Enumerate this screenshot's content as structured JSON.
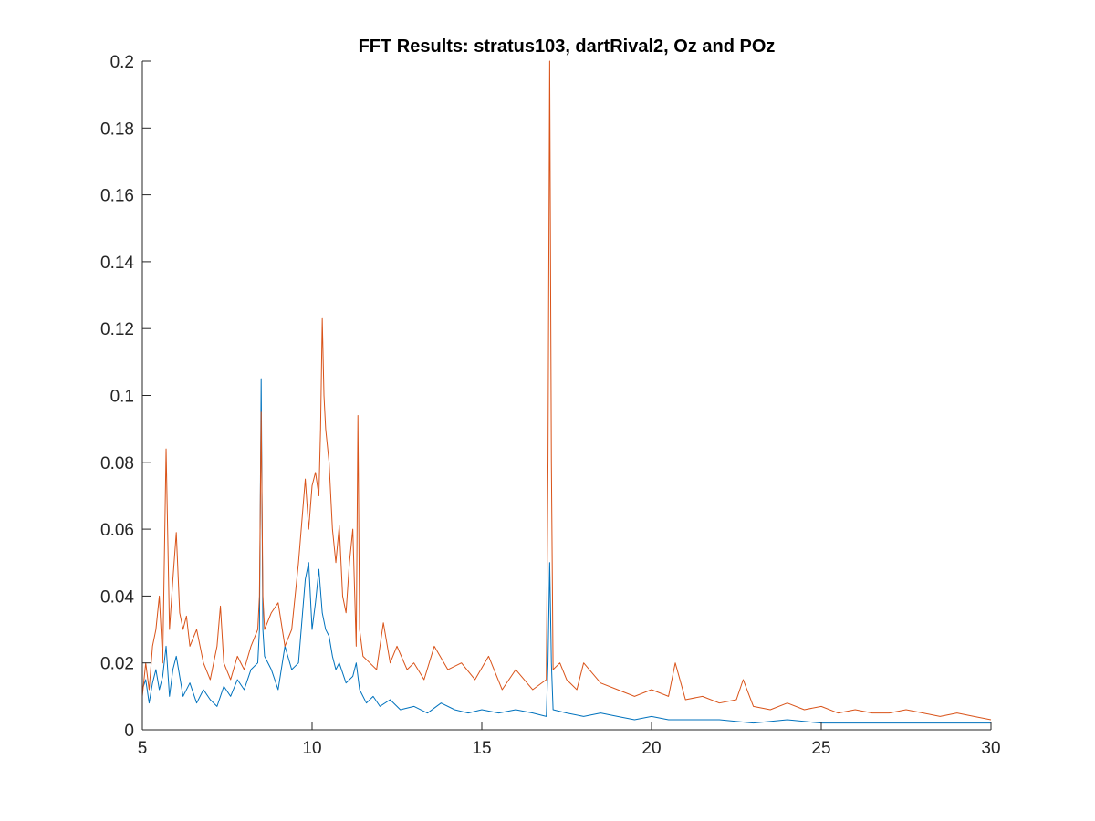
{
  "chart_data": {
    "type": "line",
    "title": "FFT Results: stratus103, dartRival2, Oz and POz",
    "xlabel": "",
    "ylabel": "",
    "xlim": [
      5,
      30
    ],
    "ylim": [
      0,
      0.2
    ],
    "xticks": [
      5,
      10,
      15,
      20,
      25,
      30
    ],
    "xtick_labels": [
      "5",
      "10",
      "15",
      "20",
      "25",
      "30"
    ],
    "yticks": [
      0,
      0.02,
      0.04,
      0.06,
      0.08,
      0.1,
      0.12,
      0.14,
      0.16,
      0.18,
      0.2
    ],
    "ytick_labels": [
      "0",
      "0.02",
      "0.04",
      "0.06",
      "0.08",
      "0.1",
      "0.12",
      "0.14",
      "0.16",
      "0.18",
      "0.2"
    ],
    "grid": false,
    "legend": "none",
    "series": [
      {
        "color": "#0072BD",
        "x": [
          5.0,
          5.1,
          5.2,
          5.3,
          5.4,
          5.5,
          5.6,
          5.7,
          5.8,
          5.9,
          6.0,
          6.2,
          6.4,
          6.6,
          6.8,
          7.0,
          7.2,
          7.4,
          7.6,
          7.8,
          8.0,
          8.2,
          8.4,
          8.45,
          8.5,
          8.55,
          8.6,
          8.8,
          9.0,
          9.2,
          9.4,
          9.6,
          9.8,
          9.9,
          10.0,
          10.1,
          10.2,
          10.3,
          10.4,
          10.5,
          10.6,
          10.7,
          10.8,
          11.0,
          11.2,
          11.3,
          11.4,
          11.6,
          11.8,
          12.0,
          12.3,
          12.6,
          13.0,
          13.4,
          13.8,
          14.2,
          14.6,
          15.0,
          15.5,
          16.0,
          16.5,
          16.9,
          16.95,
          17.0,
          17.05,
          17.1,
          17.5,
          18.0,
          18.5,
          19.0,
          19.5,
          20.0,
          20.5,
          21.0,
          22.0,
          23.0,
          24.0,
          25.0,
          26.0,
          27.0,
          28.0,
          29.0,
          30.0
        ],
        "y": [
          0.012,
          0.015,
          0.008,
          0.014,
          0.018,
          0.012,
          0.016,
          0.025,
          0.01,
          0.018,
          0.022,
          0.01,
          0.014,
          0.008,
          0.012,
          0.009,
          0.007,
          0.013,
          0.01,
          0.015,
          0.012,
          0.018,
          0.02,
          0.03,
          0.105,
          0.03,
          0.022,
          0.018,
          0.012,
          0.025,
          0.018,
          0.02,
          0.045,
          0.05,
          0.03,
          0.038,
          0.048,
          0.035,
          0.03,
          0.028,
          0.022,
          0.018,
          0.02,
          0.014,
          0.016,
          0.02,
          0.012,
          0.008,
          0.01,
          0.007,
          0.009,
          0.006,
          0.007,
          0.005,
          0.008,
          0.006,
          0.005,
          0.006,
          0.005,
          0.006,
          0.005,
          0.004,
          0.02,
          0.05,
          0.02,
          0.006,
          0.005,
          0.004,
          0.005,
          0.004,
          0.003,
          0.004,
          0.003,
          0.003,
          0.003,
          0.002,
          0.003,
          0.002,
          0.002,
          0.002,
          0.002,
          0.002,
          0.002
        ]
      },
      {
        "color": "#D95319",
        "x": [
          5.0,
          5.1,
          5.2,
          5.3,
          5.4,
          5.5,
          5.6,
          5.7,
          5.8,
          5.9,
          6.0,
          6.1,
          6.2,
          6.3,
          6.4,
          6.6,
          6.8,
          7.0,
          7.2,
          7.3,
          7.4,
          7.6,
          7.8,
          8.0,
          8.2,
          8.4,
          8.45,
          8.5,
          8.55,
          8.6,
          8.8,
          9.0,
          9.2,
          9.4,
          9.6,
          9.8,
          9.9,
          10.0,
          10.1,
          10.2,
          10.25,
          10.3,
          10.35,
          10.4,
          10.5,
          10.6,
          10.7,
          10.8,
          10.9,
          11.0,
          11.1,
          11.2,
          11.3,
          11.35,
          11.4,
          11.5,
          11.7,
          11.9,
          12.1,
          12.3,
          12.5,
          12.8,
          13.0,
          13.3,
          13.6,
          14.0,
          14.4,
          14.8,
          15.2,
          15.6,
          16.0,
          16.5,
          16.9,
          16.95,
          17.0,
          17.05,
          17.1,
          17.3,
          17.5,
          17.8,
          18.0,
          18.5,
          19.0,
          19.5,
          20.0,
          20.5,
          20.7,
          21.0,
          21.5,
          22.0,
          22.5,
          22.7,
          23.0,
          23.5,
          24.0,
          24.5,
          25.0,
          25.5,
          26.0,
          26.5,
          27.0,
          27.5,
          28.0,
          28.5,
          29.0,
          29.5,
          30.0
        ],
        "y": [
          0.01,
          0.02,
          0.012,
          0.025,
          0.03,
          0.04,
          0.02,
          0.084,
          0.03,
          0.045,
          0.059,
          0.035,
          0.03,
          0.034,
          0.025,
          0.03,
          0.02,
          0.015,
          0.025,
          0.037,
          0.02,
          0.015,
          0.022,
          0.018,
          0.025,
          0.03,
          0.04,
          0.095,
          0.04,
          0.03,
          0.035,
          0.038,
          0.025,
          0.03,
          0.05,
          0.075,
          0.06,
          0.073,
          0.077,
          0.07,
          0.09,
          0.123,
          0.1,
          0.09,
          0.08,
          0.06,
          0.05,
          0.061,
          0.04,
          0.035,
          0.05,
          0.06,
          0.025,
          0.094,
          0.03,
          0.022,
          0.02,
          0.018,
          0.032,
          0.02,
          0.025,
          0.018,
          0.02,
          0.015,
          0.025,
          0.018,
          0.02,
          0.015,
          0.022,
          0.012,
          0.018,
          0.012,
          0.015,
          0.08,
          0.2,
          0.08,
          0.018,
          0.02,
          0.015,
          0.012,
          0.02,
          0.014,
          0.012,
          0.01,
          0.012,
          0.01,
          0.02,
          0.009,
          0.01,
          0.008,
          0.009,
          0.015,
          0.007,
          0.006,
          0.008,
          0.006,
          0.007,
          0.005,
          0.006,
          0.005,
          0.005,
          0.006,
          0.005,
          0.004,
          0.005,
          0.004,
          0.003
        ]
      }
    ]
  }
}
